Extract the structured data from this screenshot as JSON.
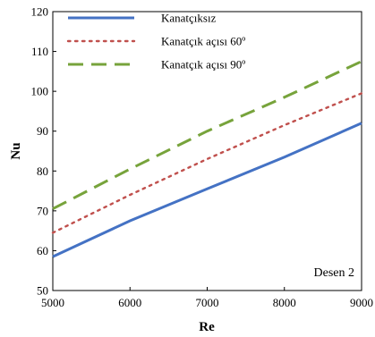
{
  "chart_data": {
    "type": "line",
    "xlabel": "Re",
    "ylabel": "Nu",
    "xlim": [
      5000,
      9000
    ],
    "ylim": [
      50,
      120
    ],
    "xticks": [
      5000,
      6000,
      7000,
      8000,
      9000
    ],
    "yticks": [
      50,
      60,
      70,
      80,
      90,
      100,
      110,
      120
    ],
    "legend_position": "top-left",
    "annotation": "Desen 2",
    "series": [
      {
        "name": "Kanatçıksız",
        "color": "#4472c4",
        "style": "solid",
        "x": [
          5000,
          6000,
          7000,
          8000,
          9000
        ],
        "y": [
          58.5,
          67.5,
          75.5,
          83.5,
          92
        ]
      },
      {
        "name": "Kanatçık açısı 60º",
        "color": "#c0504d",
        "style": "dotted",
        "x": [
          5000,
          6000,
          7000,
          8000,
          9000
        ],
        "y": [
          64.5,
          74,
          83,
          91.5,
          99.5
        ]
      },
      {
        "name": "Kanatçık açısı 90º",
        "color": "#77a33b",
        "style": "dashed",
        "x": [
          5000,
          6000,
          7000,
          8000,
          9000
        ],
        "y": [
          70.5,
          80.5,
          90,
          98.5,
          107.5
        ]
      }
    ]
  }
}
